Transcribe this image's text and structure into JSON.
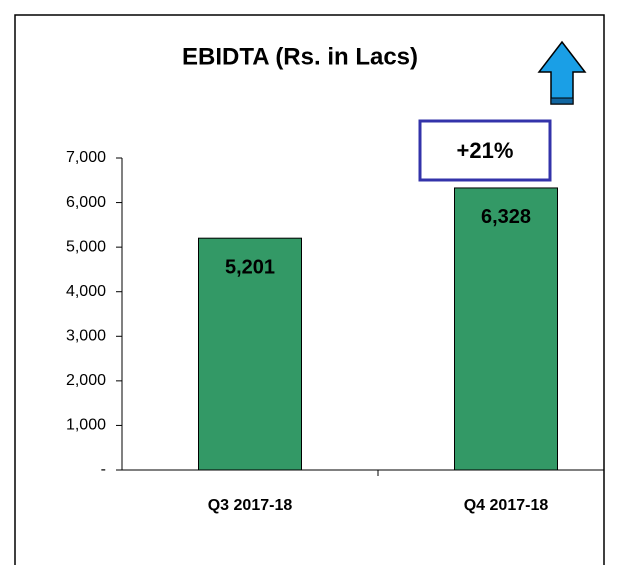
{
  "chart_data": {
    "type": "bar",
    "title": "EBIDTA (Rs. in Lacs)",
    "categories": [
      "Q3 2017-18",
      "Q4 2017-18"
    ],
    "values": [
      5201,
      6328
    ],
    "value_labels": [
      "5,201",
      "6,328"
    ],
    "color": "#339966",
    "ylim": [
      0,
      7000
    ],
    "yticks": [
      {
        "value": 0,
        "label": "-"
      },
      {
        "value": 1000,
        "label": "1,000"
      },
      {
        "value": 2000,
        "label": "2,000"
      },
      {
        "value": 3000,
        "label": "3,000"
      },
      {
        "value": 4000,
        "label": "4,000"
      },
      {
        "value": 5000,
        "label": "5,000"
      },
      {
        "value": 6000,
        "label": "6,000"
      },
      {
        "value": 7000,
        "label": "7,000"
      }
    ],
    "annotation": "+21%"
  }
}
